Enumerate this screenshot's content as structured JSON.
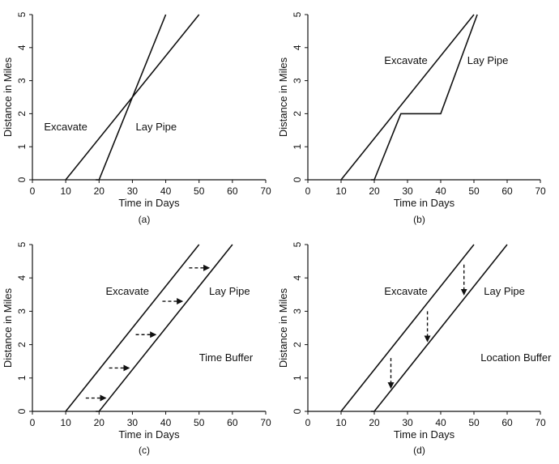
{
  "chart_data": [
    {
      "type": "line",
      "caption": "(a)",
      "xlabel": "Time in Days",
      "ylabel": "Distance in Miles",
      "xlim": [
        0,
        70
      ],
      "ylim": [
        0,
        5
      ],
      "xticks": [
        "0",
        "10",
        "20",
        "30",
        "40",
        "50",
        "60",
        "70"
      ],
      "yticks": [
        "0",
        "1",
        "2",
        "3",
        "4",
        "5"
      ],
      "series": [
        {
          "name": "Excavate",
          "points": [
            [
              10,
              0
            ],
            [
              50,
              5
            ]
          ]
        },
        {
          "name": "Lay Pipe",
          "points": [
            [
              19,
              0
            ],
            [
              20,
              0
            ],
            [
              40,
              5
            ]
          ]
        }
      ],
      "annotations": [
        {
          "text": "Excavate",
          "at": [
            3.5,
            1.5
          ]
        },
        {
          "text": "Lay Pipe",
          "at": [
            31,
            1.5
          ]
        }
      ],
      "arrows": []
    },
    {
      "type": "line",
      "caption": "(b)",
      "xlabel": "Time in Days",
      "ylabel": "Distance in Miles",
      "xlim": [
        0,
        70
      ],
      "ylim": [
        0,
        5
      ],
      "xticks": [
        "0",
        "10",
        "20",
        "30",
        "40",
        "50",
        "60",
        "70"
      ],
      "yticks": [
        "0",
        "1",
        "2",
        "3",
        "4",
        "5"
      ],
      "series": [
        {
          "name": "Excavate",
          "points": [
            [
              10,
              0
            ],
            [
              50,
              5
            ]
          ]
        },
        {
          "name": "Lay Pipe",
          "points": [
            [
              19,
              0
            ],
            [
              20,
              0
            ],
            [
              28,
              2
            ],
            [
              40,
              2
            ],
            [
              51,
              5
            ]
          ]
        }
      ],
      "annotations": [
        {
          "text": "Excavate",
          "at": [
            23,
            3.5
          ]
        },
        {
          "text": "Lay Pipe",
          "at": [
            48,
            3.5
          ]
        }
      ],
      "arrows": []
    },
    {
      "type": "line",
      "caption": "(c)",
      "xlabel": "Time in Days",
      "ylabel": "Distance in Miles",
      "xlim": [
        0,
        70
      ],
      "ylim": [
        0,
        5
      ],
      "xticks": [
        "0",
        "10",
        "20",
        "30",
        "40",
        "50",
        "60",
        "70"
      ],
      "yticks": [
        "0",
        "1",
        "2",
        "3",
        "4",
        "5"
      ],
      "series": [
        {
          "name": "Excavate",
          "points": [
            [
              10,
              0
            ],
            [
              50,
              5
            ]
          ]
        },
        {
          "name": "Lay Pipe",
          "points": [
            [
              19,
              0
            ],
            [
              20,
              0
            ],
            [
              60,
              5
            ]
          ]
        }
      ],
      "annotations": [
        {
          "text": "Excavate",
          "at": [
            22,
            3.5
          ]
        },
        {
          "text": "Lay Pipe",
          "at": [
            53,
            3.5
          ]
        },
        {
          "text": "Time Buffer",
          "at": [
            50,
            1.5
          ]
        }
      ],
      "arrows": [
        {
          "from": [
            16,
            0.4
          ],
          "to": [
            22,
            0.4
          ]
        },
        {
          "from": [
            23,
            1.3
          ],
          "to": [
            29,
            1.3
          ]
        },
        {
          "from": [
            31,
            2.3
          ],
          "to": [
            37,
            2.3
          ]
        },
        {
          "from": [
            39,
            3.3
          ],
          "to": [
            45,
            3.3
          ]
        },
        {
          "from": [
            47,
            4.3
          ],
          "to": [
            53,
            4.3
          ]
        }
      ]
    },
    {
      "type": "line",
      "caption": "(d)",
      "xlabel": "Time in Days",
      "ylabel": "Distance in Miles",
      "xlim": [
        0,
        70
      ],
      "ylim": [
        0,
        5
      ],
      "xticks": [
        "0",
        "10",
        "20",
        "30",
        "40",
        "50",
        "60",
        "70"
      ],
      "yticks": [
        "0",
        "1",
        "2",
        "3",
        "4",
        "5"
      ],
      "series": [
        {
          "name": "Excavate",
          "points": [
            [
              10,
              0
            ],
            [
              50,
              5
            ]
          ]
        },
        {
          "name": "Lay Pipe",
          "points": [
            [
              19,
              0
            ],
            [
              20,
              0
            ],
            [
              60,
              5
            ]
          ]
        }
      ],
      "annotations": [
        {
          "text": "Excavate",
          "at": [
            23,
            3.5
          ]
        },
        {
          "text": "Lay Pipe",
          "at": [
            53,
            3.5
          ]
        },
        {
          "text": "Location Buffer",
          "at": [
            52,
            1.5
          ]
        }
      ],
      "arrows": [
        {
          "from": [
            25,
            1.6
          ],
          "to": [
            25,
            0.7
          ]
        },
        {
          "from": [
            36,
            3.0
          ],
          "to": [
            36,
            2.1
          ]
        },
        {
          "from": [
            47,
            4.4
          ],
          "to": [
            47,
            3.5
          ]
        }
      ]
    }
  ]
}
